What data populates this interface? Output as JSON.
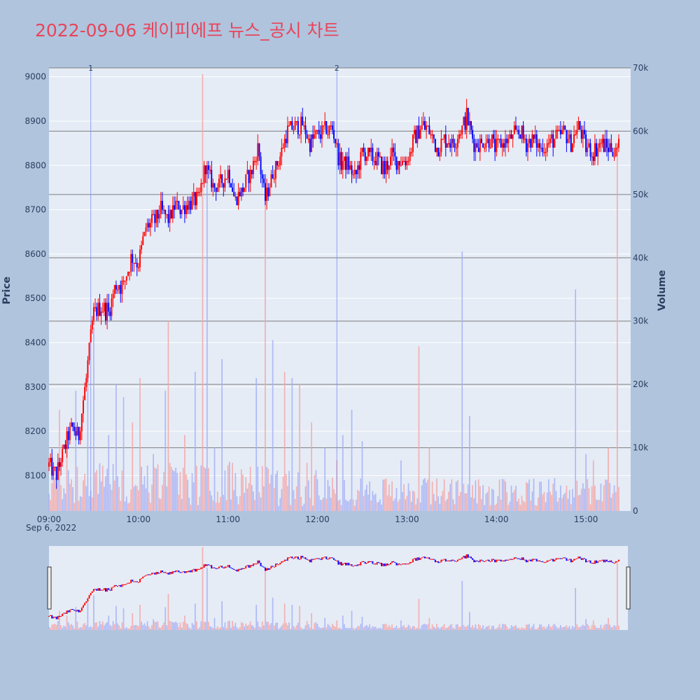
{
  "title": "2022-09-06 케이피에프 뉴스_공시 차트",
  "chart_data": {
    "type": "candlestick",
    "title": "2022-09-06 케이피에프 뉴스_공시 차트",
    "ylabel": "Price",
    "y2label": "Volume",
    "date_label": "Sep 6, 2022",
    "ylim": [
      8020,
      9020
    ],
    "y2lim": [
      0,
      70000
    ],
    "x_range": [
      "09:00",
      "15:30"
    ],
    "x_ticks": [
      "09:00",
      "10:00",
      "11:00",
      "12:00",
      "13:00",
      "14:00",
      "15:00"
    ],
    "y_ticks": [
      "8100",
      "8200",
      "8300",
      "8400",
      "8500",
      "8600",
      "8700",
      "8800",
      "8900",
      "9000"
    ],
    "y2_ticks": [
      "0",
      "10k",
      "20k",
      "30k",
      "40k",
      "50k",
      "60k",
      "70k"
    ],
    "y2_tick_values": [
      0,
      10000,
      20000,
      30000,
      40000,
      50000,
      60000,
      70000
    ],
    "markers": [
      {
        "label": "1",
        "time": "09:28"
      },
      {
        "label": "2",
        "time": "12:13"
      }
    ],
    "up_color": "#ff0000",
    "down_color": "#0000ff",
    "price_path": [
      [
        "09:00",
        8120
      ],
      [
        "09:05",
        8100
      ],
      [
        "09:10",
        8160
      ],
      [
        "09:15",
        8210
      ],
      [
        "09:20",
        8190
      ],
      [
        "09:25",
        8320
      ],
      [
        "09:30",
        8470
      ],
      [
        "09:35",
        8480
      ],
      [
        "09:40",
        8470
      ],
      [
        "09:45",
        8530
      ],
      [
        "09:50",
        8530
      ],
      [
        "09:55",
        8590
      ],
      [
        "10:00",
        8580
      ],
      [
        "10:05",
        8660
      ],
      [
        "10:10",
        8670
      ],
      [
        "10:15",
        8700
      ],
      [
        "10:20",
        8680
      ],
      [
        "10:25",
        8710
      ],
      [
        "10:30",
        8700
      ],
      [
        "10:35",
        8720
      ],
      [
        "10:40",
        8720
      ],
      [
        "10:45",
        8800
      ],
      [
        "10:50",
        8750
      ],
      [
        "10:55",
        8760
      ],
      [
        "11:00",
        8790
      ],
      [
        "11:05",
        8720
      ],
      [
        "11:10",
        8750
      ],
      [
        "11:15",
        8780
      ],
      [
        "11:20",
        8840
      ],
      [
        "11:25",
        8720
      ],
      [
        "11:30",
        8780
      ],
      [
        "11:35",
        8820
      ],
      [
        "11:40",
        8880
      ],
      [
        "11:45",
        8890
      ],
      [
        "11:50",
        8890
      ],
      [
        "11:55",
        8850
      ],
      [
        "12:00",
        8870
      ],
      [
        "12:05",
        8880
      ],
      [
        "12:10",
        8880
      ],
      [
        "12:15",
        8810
      ],
      [
        "12:20",
        8800
      ],
      [
        "12:25",
        8770
      ],
      [
        "12:30",
        8830
      ],
      [
        "12:35",
        8820
      ],
      [
        "12:40",
        8810
      ],
      [
        "12:45",
        8790
      ],
      [
        "12:50",
        8820
      ],
      [
        "12:55",
        8810
      ],
      [
        "13:00",
        8810
      ],
      [
        "13:05",
        8860
      ],
      [
        "13:10",
        8890
      ],
      [
        "13:15",
        8880
      ],
      [
        "13:20",
        8840
      ],
      [
        "13:25",
        8860
      ],
      [
        "13:30",
        8850
      ],
      [
        "13:35",
        8870
      ],
      [
        "13:40",
        8910
      ],
      [
        "13:45",
        8850
      ],
      [
        "13:50",
        8850
      ],
      [
        "13:55",
        8860
      ],
      [
        "14:00",
        8840
      ],
      [
        "14:05",
        8850
      ],
      [
        "14:10",
        8860
      ],
      [
        "14:15",
        8880
      ],
      [
        "14:20",
        8850
      ],
      [
        "14:25",
        8860
      ],
      [
        "14:30",
        8840
      ],
      [
        "14:35",
        8850
      ],
      [
        "14:40",
        8860
      ],
      [
        "14:45",
        8880
      ],
      [
        "14:50",
        8850
      ],
      [
        "14:55",
        8890
      ],
      [
        "15:00",
        8840
      ],
      [
        "15:05",
        8830
      ],
      [
        "15:10",
        8850
      ],
      [
        "15:15",
        8840
      ],
      [
        "15:20",
        8830
      ],
      [
        "15:22",
        8840
      ]
    ],
    "volume_spikes": [
      [
        "09:07",
        16000
      ],
      [
        "09:12",
        12000
      ],
      [
        "09:18",
        19000
      ],
      [
        "09:26",
        23000
      ],
      [
        "09:30",
        29000
      ],
      [
        "09:40",
        12000
      ],
      [
        "09:45",
        20000
      ],
      [
        "09:50",
        18000
      ],
      [
        "09:56",
        14000
      ],
      [
        "10:01",
        21000
      ],
      [
        "10:10",
        9000
      ],
      [
        "10:18",
        19000
      ],
      [
        "10:20",
        30000
      ],
      [
        "10:31",
        12000
      ],
      [
        "10:38",
        22000
      ],
      [
        "10:43",
        69000
      ],
      [
        "10:46",
        52000
      ],
      [
        "10:51",
        10000
      ],
      [
        "10:56",
        24000
      ],
      [
        "11:05",
        6000
      ],
      [
        "11:19",
        21000
      ],
      [
        "11:25",
        50000
      ],
      [
        "11:30",
        27000
      ],
      [
        "11:38",
        22000
      ],
      [
        "11:43",
        21000
      ],
      [
        "11:48",
        20000
      ],
      [
        "11:56",
        14000
      ],
      [
        "12:05",
        10000
      ],
      [
        "12:13",
        8000
      ],
      [
        "12:17",
        12000
      ],
      [
        "12:23",
        16000
      ],
      [
        "12:30",
        11000
      ],
      [
        "12:45",
        5000
      ],
      [
        "12:56",
        8000
      ],
      [
        "13:08",
        26000
      ],
      [
        "13:15",
        10000
      ],
      [
        "13:25",
        5000
      ],
      [
        "13:37",
        41000
      ],
      [
        "13:42",
        15000
      ],
      [
        "13:48",
        5000
      ],
      [
        "14:05",
        5000
      ],
      [
        "14:13",
        4000
      ],
      [
        "14:22",
        5000
      ],
      [
        "14:35",
        5000
      ],
      [
        "14:47",
        4000
      ],
      [
        "14:53",
        35000
      ],
      [
        "15:00",
        9000
      ],
      [
        "15:05",
        8000
      ],
      [
        "15:15",
        10000
      ],
      [
        "15:21",
        56000
      ]
    ]
  }
}
